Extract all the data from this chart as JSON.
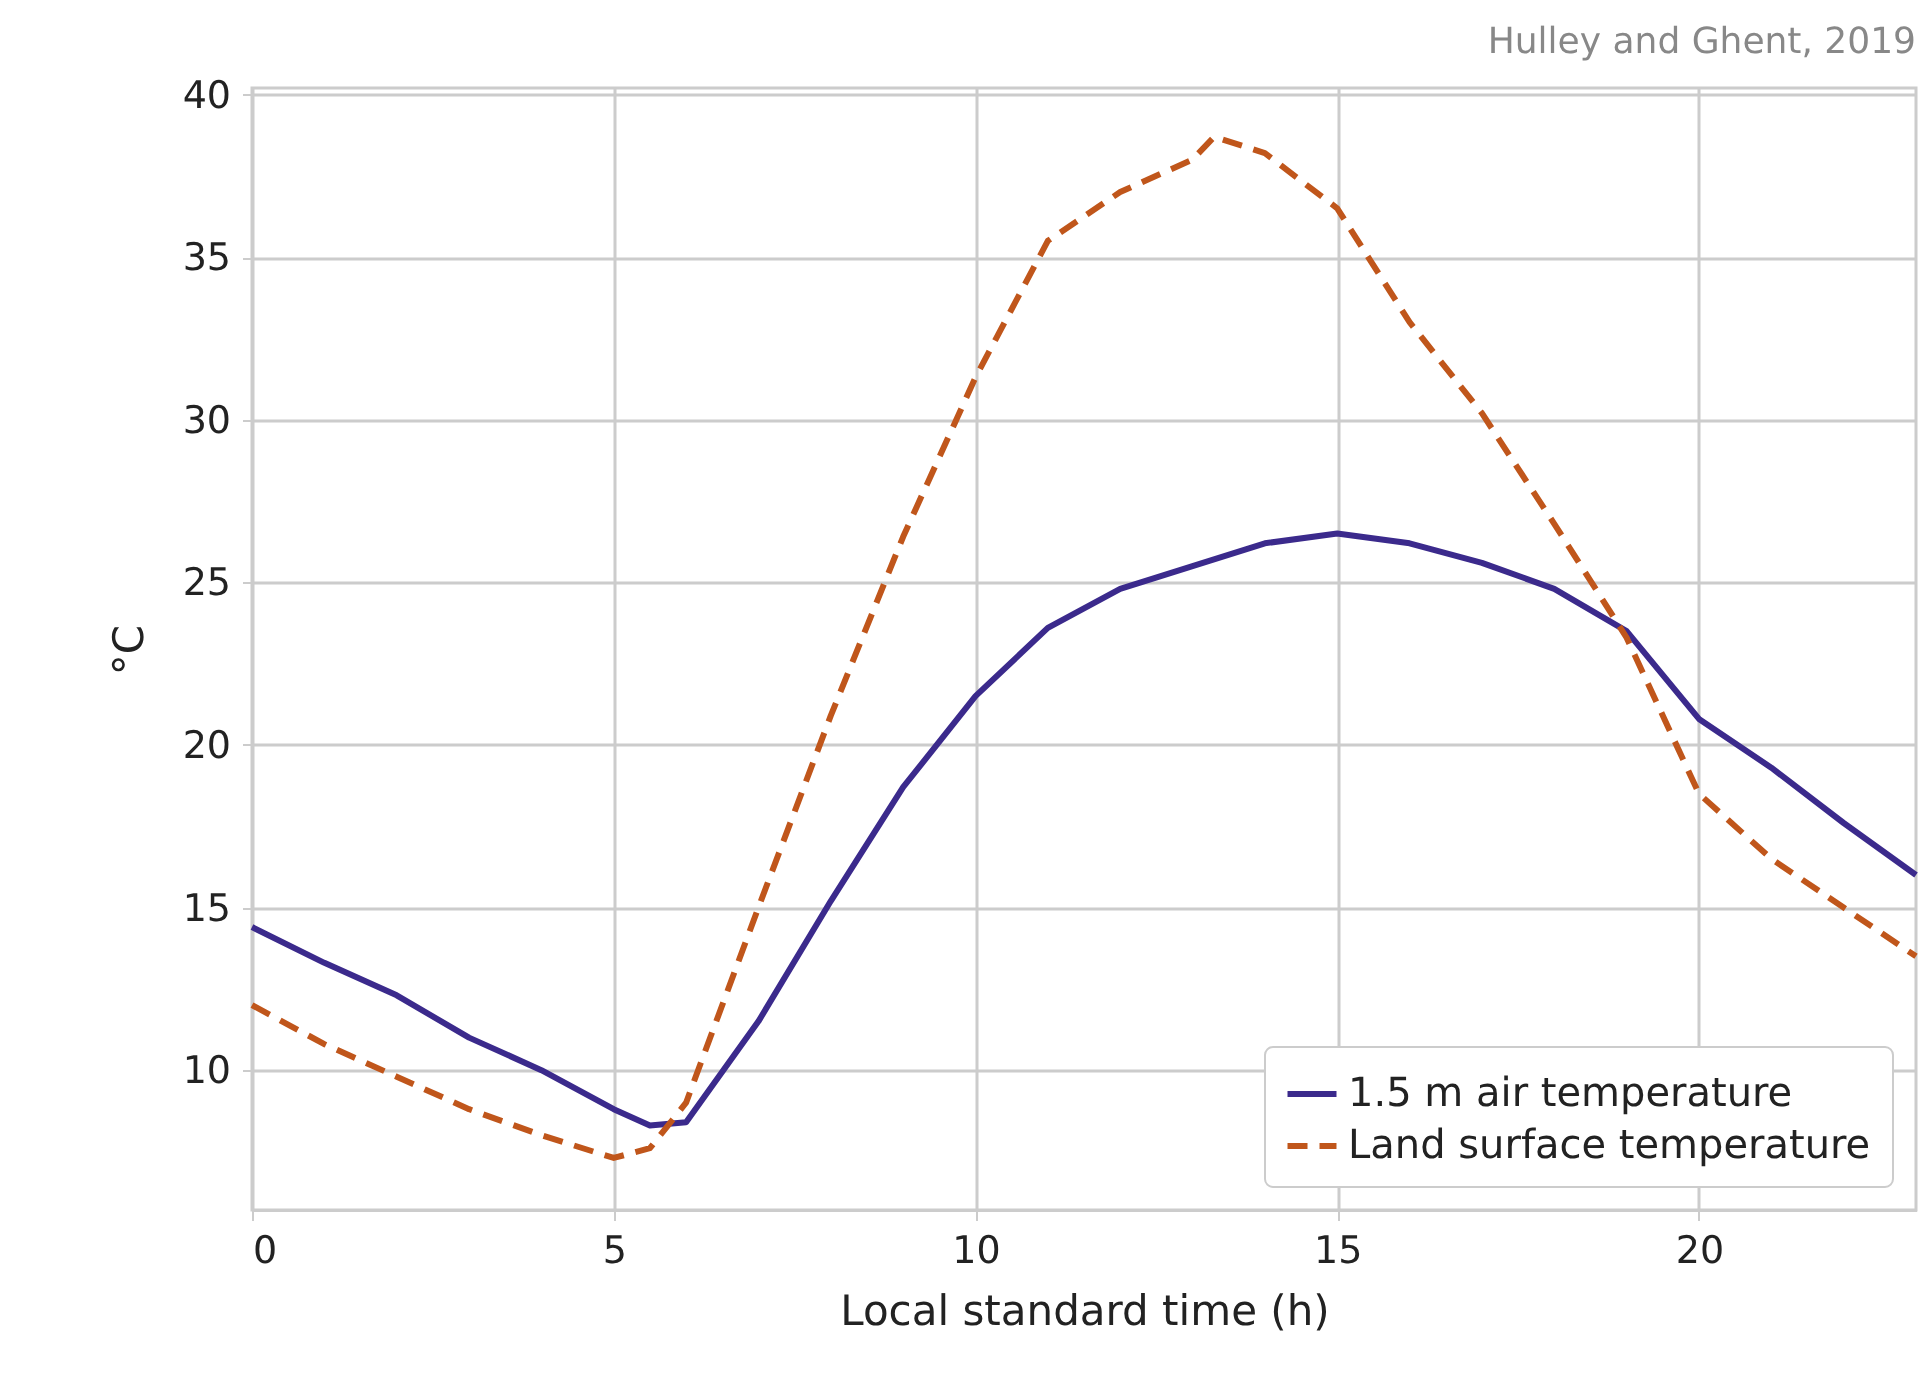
{
  "chart_data": {
    "type": "line",
    "xlabel": "Local standard time (h)",
    "ylabel": "°C",
    "annotations": [
      "Hulley and Ghent, 2019"
    ],
    "xlim": [
      0,
      23
    ],
    "ylim": [
      5.7,
      40.2
    ],
    "xticks": [
      0,
      5,
      10,
      15,
      20
    ],
    "yticks": [
      10,
      15,
      20,
      25,
      30,
      35,
      40
    ],
    "grid": true,
    "legend": "bottom right",
    "series": [
      {
        "name": "1.5 m air temperature",
        "color": "#3b2a8c",
        "line_style": "solid",
        "x": [
          0,
          1,
          2,
          3,
          4,
          5,
          5.5,
          6,
          7,
          8,
          9,
          10,
          11,
          12,
          13,
          14,
          15,
          16,
          17,
          18,
          19,
          20,
          21,
          22,
          23
        ],
        "values": [
          14.4,
          13.3,
          12.3,
          11,
          10,
          8.8,
          8.3,
          8.4,
          11.5,
          15.2,
          18.7,
          21.5,
          23.6,
          24.8,
          25.5,
          26.2,
          26.5,
          26.2,
          25.6,
          24.8,
          23.5,
          20.8,
          19.3,
          17.6,
          16.0
        ]
      },
      {
        "name": "Land surface temperature",
        "color": "#c0561b",
        "line_style": "dashed",
        "x": [
          0,
          1,
          2,
          3,
          4,
          5,
          5.5,
          6,
          7,
          8,
          9,
          10,
          11,
          12,
          13,
          13.3,
          14,
          15,
          16,
          17,
          18,
          19,
          20,
          21,
          22,
          23
        ],
        "values": [
          12.0,
          10.8,
          9.8,
          8.8,
          8.0,
          7.3,
          7.6,
          9.0,
          15,
          20.9,
          26.4,
          31.3,
          35.5,
          37,
          38,
          38.7,
          38.2,
          36.5,
          33,
          30.2,
          26.8,
          23.3,
          18.5,
          16.5,
          15,
          13.5
        ]
      }
    ]
  }
}
